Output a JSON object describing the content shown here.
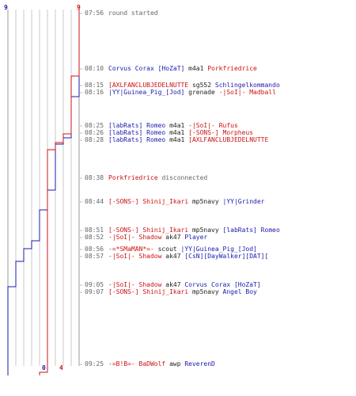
{
  "colors": {
    "blue_team": "#1a1ab0",
    "red_team": "#cc1111",
    "text": "#222222",
    "time": "#666666",
    "grid": "#c8c8c8"
  },
  "score_top": {
    "blue": "9",
    "red": "9"
  },
  "score_bottom": {
    "blue": "0",
    "red": "4"
  },
  "chart_data": {
    "type": "line",
    "x_range": [
      0,
      9
    ],
    "series": [
      {
        "team": "blue",
        "points": [
          [
            9,
            0
          ],
          [
            8,
            110
          ],
          [
            7,
            162
          ],
          [
            6,
            170
          ],
          [
            5,
            228
          ],
          [
            4,
            253
          ],
          [
            3,
            292
          ],
          [
            2,
            302
          ],
          [
            1,
            318
          ],
          [
            0,
            350
          ],
          [
            0,
            462
          ]
        ]
      },
      {
        "team": "red",
        "points": [
          [
            9,
            0
          ],
          [
            8,
            84
          ],
          [
            7,
            157
          ],
          [
            6,
            168
          ],
          [
            5,
            177
          ],
          [
            4,
            458
          ],
          [
            4,
            462
          ]
        ]
      }
    ]
  },
  "events": [
    {
      "time": "07:56",
      "parts": [
        {
          "t": "round started",
          "c": "gray"
        }
      ]
    },
    {
      "time": "08:10",
      "parts": [
        {
          "t": "Corvus Corax [HoZaT]",
          "c": "blue"
        },
        {
          "t": " m4a1 ",
          "c": "black"
        },
        {
          "t": "Porkfriedrice",
          "c": "red"
        }
      ]
    },
    {
      "time": "08:15",
      "parts": [
        {
          "t": "[AXLFANCLUBJEDELNUTTE",
          "c": "red"
        },
        {
          "t": " sg552 ",
          "c": "black"
        },
        {
          "t": "Schlingelkommando",
          "c": "blue"
        }
      ]
    },
    {
      "time": "08:16",
      "parts": [
        {
          "t": "|YY|Guinea_Pig_[Jod]",
          "c": "blue"
        },
        {
          "t": " grenade ",
          "c": "black"
        },
        {
          "t": "-|SoI|- Madball",
          "c": "red"
        }
      ]
    },
    {
      "time": "08:25",
      "parts": [
        {
          "t": "[labRats] Romeo",
          "c": "blue"
        },
        {
          "t": " m4a1 ",
          "c": "black"
        },
        {
          "t": "-|SoI|- Rufus",
          "c": "red"
        }
      ]
    },
    {
      "time": "08:26",
      "parts": [
        {
          "t": "[labRats] Romeo",
          "c": "blue"
        },
        {
          "t": " m4a1 ",
          "c": "black"
        },
        {
          "t": "[-SONS-] Morpheus",
          "c": "red"
        }
      ]
    },
    {
      "time": "08:28",
      "parts": [
        {
          "t": "[labRats] Romeo",
          "c": "blue"
        },
        {
          "t": " m4a1 ",
          "c": "black"
        },
        {
          "t": "[AXLFANCLUBJEDELNUTTE",
          "c": "red"
        }
      ]
    },
    {
      "time": "08:38",
      "parts": [
        {
          "t": "Porkfriedrice",
          "c": "red"
        },
        {
          "t": " disconnected",
          "c": "gray"
        }
      ]
    },
    {
      "time": "08:44",
      "parts": [
        {
          "t": "[-SONS-] Shinij_Ikari",
          "c": "red"
        },
        {
          "t": " mp5navy ",
          "c": "black"
        },
        {
          "t": "|YY|Grinder",
          "c": "blue"
        }
      ]
    },
    {
      "time": "08:51",
      "parts": [
        {
          "t": "[-SONS-] Shinij_Ikari",
          "c": "red"
        },
        {
          "t": " mp5navy ",
          "c": "black"
        },
        {
          "t": "[labRats] Romeo",
          "c": "blue"
        }
      ]
    },
    {
      "time": "08:52",
      "parts": [
        {
          "t": "-|SoI|- Shadow",
          "c": "red"
        },
        {
          "t": " ak47 ",
          "c": "black"
        },
        {
          "t": "Player",
          "c": "blue"
        }
      ]
    },
    {
      "time": "08:56",
      "parts": [
        {
          "t": "-=*SMaMAN*=-",
          "c": "red"
        },
        {
          "t": " scout ",
          "c": "black"
        },
        {
          "t": "|YY|Guinea_Pig_[Jod]",
          "c": "blue"
        }
      ]
    },
    {
      "time": "08:57",
      "parts": [
        {
          "t": "-|SoI|- Shadow",
          "c": "red"
        },
        {
          "t": " ak47 ",
          "c": "black"
        },
        {
          "t": "[CsN][DayWalker][DAT][",
          "c": "blue"
        }
      ]
    },
    {
      "time": "09:05",
      "parts": [
        {
          "t": "-|SoI|- Shadow",
          "c": "red"
        },
        {
          "t": " ak47 ",
          "c": "black"
        },
        {
          "t": "Corvus Corax [HoZaT]",
          "c": "blue"
        }
      ]
    },
    {
      "time": "09:07",
      "parts": [
        {
          "t": "[-SONS-] Shinij_Ikari",
          "c": "red"
        },
        {
          "t": " mp5navy ",
          "c": "black"
        },
        {
          "t": "Angel Boy",
          "c": "blue"
        }
      ]
    },
    {
      "time": "09:25",
      "parts": [
        {
          "t": "-=B!B=- BaDWolf",
          "c": "red"
        },
        {
          "t": " awp ",
          "c": "black"
        },
        {
          "t": "ReverenD",
          "c": "blue"
        }
      ]
    }
  ]
}
